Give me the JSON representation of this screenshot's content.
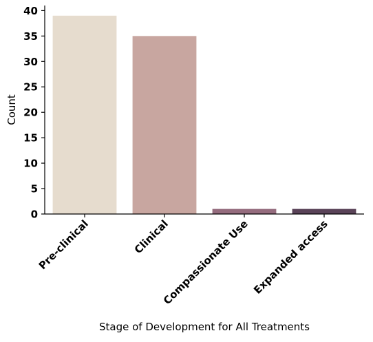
{
  "chart_data": {
    "type": "bar",
    "categories": [
      "Pre-clinical",
      "Clinical",
      "Compassionate Use",
      "Expanded access"
    ],
    "values": [
      39,
      35,
      1,
      1
    ],
    "bar_colors": [
      "#e6dcce",
      "#c8a6a0",
      "#956c7e",
      "#5a4358"
    ],
    "xlabel": "Stage of Development for All Treatments",
    "ylabel": "Count",
    "ylim": [
      0,
      41
    ],
    "yticks": [
      0,
      5,
      10,
      15,
      20,
      25,
      30,
      35,
      40
    ],
    "grid": false,
    "legend": null
  }
}
